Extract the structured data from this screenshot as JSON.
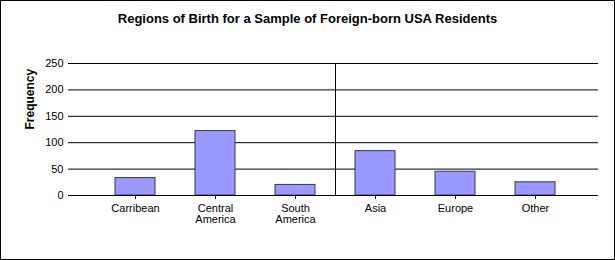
{
  "chart_data": {
    "type": "bar",
    "title": "Regions of Birth for a Sample of Foreign-born USA Residents",
    "y_label": "Frequency",
    "categories": [
      "Carribean",
      "Central America",
      "South America",
      "Asia",
      "Europe",
      "Other"
    ],
    "values": [
      33,
      122,
      20,
      84,
      45,
      25
    ],
    "color": "#9999ff",
    "ylim": [
      0,
      250
    ],
    "yticks": [
      0,
      50,
      100,
      150,
      200,
      250
    ],
    "grid": true
  }
}
